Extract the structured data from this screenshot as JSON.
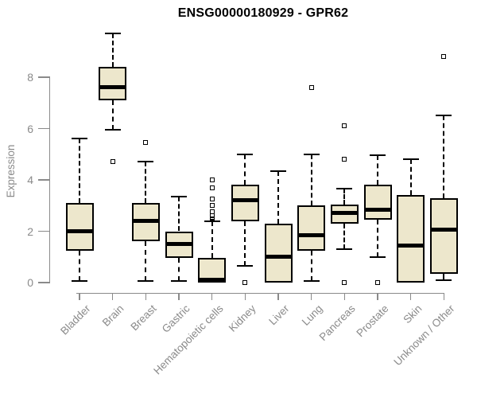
{
  "title": "ENSG00000180929 - GPR62",
  "y_axis": {
    "label": "Expression",
    "tick_labels": [
      "0",
      "2",
      "4",
      "6",
      "8"
    ]
  },
  "x_axis": {
    "categories": [
      "Bladder",
      "Brain",
      "Breast",
      "Gastric",
      "Hematopoietic cells",
      "Kidney",
      "Liver",
      "Lung",
      "Pancreas",
      "Prostate",
      "Skin",
      "Unknown / Other"
    ]
  },
  "colors": {
    "background": "#ffffff",
    "box_fill": "#ede7cc",
    "box_border": "#000000",
    "axis": "#8a8a8a",
    "label_text": "#8a8a8a",
    "title_text": "#000000"
  },
  "chart_data": {
    "type": "boxplot",
    "title": "ENSG00000180929 - GPR62",
    "xlabel": "",
    "ylabel": "Expression",
    "ylim": [
      0,
      9.8
    ],
    "y_ticks": [
      0,
      2,
      4,
      6,
      8
    ],
    "grid": false,
    "legend": false,
    "categories": [
      "Bladder",
      "Brain",
      "Breast",
      "Gastric",
      "Hematopoietic cells",
      "Kidney",
      "Liver",
      "Lung",
      "Pancreas",
      "Prostate",
      "Skin",
      "Unknown / Other"
    ],
    "series": [
      {
        "name": "Bladder",
        "whisker_low": 0.05,
        "q1": 1.25,
        "median": 2.0,
        "q3": 3.1,
        "whisker_high": 5.6,
        "outliers": []
      },
      {
        "name": "Brain",
        "whisker_low": 5.95,
        "q1": 7.1,
        "median": 7.6,
        "q3": 8.4,
        "whisker_high": 9.7,
        "outliers": [
          4.7
        ]
      },
      {
        "name": "Breast",
        "whisker_low": 0.05,
        "q1": 1.6,
        "median": 2.4,
        "q3": 3.1,
        "whisker_high": 4.7,
        "outliers": [
          5.45
        ]
      },
      {
        "name": "Gastric",
        "whisker_low": 0.05,
        "q1": 0.95,
        "median": 1.5,
        "q3": 2.0,
        "whisker_high": 3.35,
        "outliers": []
      },
      {
        "name": "Hematopoietic cells",
        "whisker_low": 0.0,
        "q1": 0.0,
        "median": 0.1,
        "q3": 0.95,
        "whisker_high": 2.4,
        "outliers": [
          2.5,
          2.55,
          2.6,
          2.65,
          2.75,
          3.0,
          3.25,
          3.7,
          4.0
        ]
      },
      {
        "name": "Kidney",
        "whisker_low": 0.65,
        "q1": 2.4,
        "median": 3.2,
        "q3": 3.8,
        "whisker_high": 5.0,
        "outliers": [
          0.0
        ]
      },
      {
        "name": "Liver",
        "whisker_low": 0.0,
        "q1": 0.0,
        "median": 1.0,
        "q3": 2.3,
        "whisker_high": 4.35,
        "outliers": []
      },
      {
        "name": "Lung",
        "whisker_low": 0.05,
        "q1": 1.25,
        "median": 1.85,
        "q3": 3.0,
        "whisker_high": 5.0,
        "outliers": [
          7.6
        ]
      },
      {
        "name": "Pancreas",
        "whisker_low": 1.3,
        "q1": 2.3,
        "median": 2.7,
        "q3": 3.05,
        "whisker_high": 3.65,
        "outliers": [
          6.1,
          4.8,
          0.0
        ]
      },
      {
        "name": "Prostate",
        "whisker_low": 1.0,
        "q1": 2.45,
        "median": 2.85,
        "q3": 3.8,
        "whisker_high": 4.95,
        "outliers": [
          0.0
        ]
      },
      {
        "name": "Skin",
        "whisker_low": 0.0,
        "q1": 0.0,
        "median": 1.45,
        "q3": 3.4,
        "whisker_high": 4.8,
        "outliers": []
      },
      {
        "name": "Unknown / Other",
        "whisker_low": 0.1,
        "q1": 0.35,
        "median": 2.05,
        "q3": 3.3,
        "whisker_high": 6.5,
        "outliers": [
          8.8
        ]
      }
    ]
  }
}
